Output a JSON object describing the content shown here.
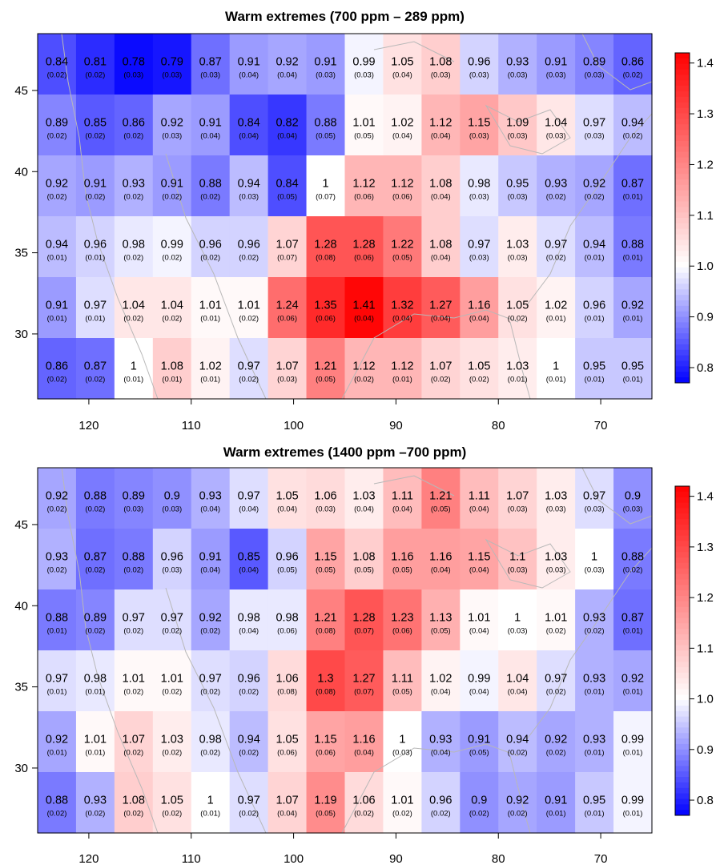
{
  "chart_data": [
    {
      "type": "heatmap",
      "title": "Warm extremes (700 ppm – 289 ppm)",
      "xlabel": "",
      "ylabel": "",
      "x_ticks": [
        120,
        110,
        100,
        90,
        80,
        70
      ],
      "y_ticks": [
        45,
        40,
        35,
        30
      ],
      "xlim": [
        125,
        65
      ],
      "ylim": [
        26,
        48.5
      ],
      "colorbar": {
        "min": 0.77,
        "max": 1.42,
        "ticks": [
          "1.4",
          "1.3",
          "1.2",
          "1.1",
          "1.0",
          "0.9",
          "0.8"
        ],
        "low_color": "#0000ff",
        "mid_color": "#ffffff",
        "high_color": "#ff0000"
      },
      "values": [
        [
          "0.84",
          "0.81",
          "0.78",
          "0.79",
          "0.87",
          "0.91",
          "0.92",
          "0.91",
          "0.99",
          "1.05",
          "1.08",
          "0.96",
          "0.93",
          "0.91",
          "0.89",
          "0.86"
        ],
        [
          "0.89",
          "0.85",
          "0.86",
          "0.92",
          "0.91",
          "0.84",
          "0.82",
          "0.88",
          "1.01",
          "1.02",
          "1.12",
          "1.15",
          "1.09",
          "1.04",
          "0.97",
          "0.94"
        ],
        [
          "0.92",
          "0.91",
          "0.93",
          "0.91",
          "0.88",
          "0.94",
          "0.84",
          "1",
          "1.12",
          "1.12",
          "1.08",
          "0.98",
          "0.95",
          "0.93",
          "0.92",
          "0.87"
        ],
        [
          "0.94",
          "0.96",
          "0.98",
          "0.99",
          "0.96",
          "0.96",
          "1.07",
          "1.28",
          "1.28",
          "1.22",
          "1.08",
          "0.97",
          "1.03",
          "0.97",
          "0.94",
          "0.88"
        ],
        [
          "0.91",
          "0.97",
          "1.04",
          "1.04",
          "1.01",
          "1.01",
          "1.24",
          "1.35",
          "1.41",
          "1.32",
          "1.27",
          "1.16",
          "1.05",
          "1.02",
          "0.96",
          "0.92"
        ],
        [
          "0.86",
          "0.87",
          "1",
          "1.08",
          "1.02",
          "0.97",
          "1.07",
          "1.21",
          "1.12",
          "1.12",
          "1.07",
          "1.05",
          "1.03",
          "1",
          "0.95",
          "0.95"
        ]
      ],
      "errors": [
        [
          "(0.02)",
          "(0.02)",
          "(0.03)",
          "(0.03)",
          "(0.03)",
          "(0.04)",
          "(0.04)",
          "(0.03)",
          "(0.03)",
          "(0.04)",
          "(0.03)",
          "(0.03)",
          "(0.03)",
          "(0.03)",
          "(0.03)",
          "(0.02)"
        ],
        [
          "(0.02)",
          "(0.02)",
          "(0.02)",
          "(0.03)",
          "(0.04)",
          "(0.04)",
          "(0.04)",
          "(0.05)",
          "(0.05)",
          "(0.04)",
          "(0.04)",
          "(0.03)",
          "(0.03)",
          "(0.03)",
          "(0.03)",
          "(0.02)"
        ],
        [
          "(0.02)",
          "(0.02)",
          "(0.02)",
          "(0.02)",
          "(0.02)",
          "(0.03)",
          "(0.05)",
          "(0.07)",
          "(0.06)",
          "(0.06)",
          "(0.04)",
          "(0.03)",
          "(0.03)",
          "(0.02)",
          "(0.02)",
          "(0.01)"
        ],
        [
          "(0.01)",
          "(0.01)",
          "(0.02)",
          "(0.02)",
          "(0.02)",
          "(0.02)",
          "(0.07)",
          "(0.08)",
          "(0.06)",
          "(0.05)",
          "(0.04)",
          "(0.03)",
          "(0.03)",
          "(0.02)",
          "(0.01)",
          "(0.01)"
        ],
        [
          "(0.01)",
          "(0.01)",
          "(0.02)",
          "(0.02)",
          "(0.01)",
          "(0.02)",
          "(0.06)",
          "(0.06)",
          "(0.04)",
          "(0.04)",
          "(0.04)",
          "(0.04)",
          "(0.02)",
          "(0.01)",
          "(0.01)",
          "(0.01)"
        ],
        [
          "(0.02)",
          "(0.02)",
          "(0.01)",
          "(0.01)",
          "(0.01)",
          "(0.02)",
          "(0.03)",
          "(0.05)",
          "(0.02)",
          "(0.01)",
          "(0.02)",
          "(0.02)",
          "(0.01)",
          "(0.01)",
          "(0.01)",
          "(0.01)"
        ]
      ]
    },
    {
      "type": "heatmap",
      "title": "Warm extremes (1400 ppm –700 ppm)",
      "xlabel": "",
      "ylabel": "",
      "x_ticks": [
        120,
        110,
        100,
        90,
        80,
        70
      ],
      "y_ticks": [
        45,
        40,
        35,
        30
      ],
      "xlim": [
        125,
        65
      ],
      "ylim": [
        26,
        48.5
      ],
      "colorbar": {
        "min": 0.77,
        "max": 1.42,
        "ticks": [
          "1.4",
          "1.3",
          "1.2",
          "1.1",
          "1.0",
          "0.9",
          "0.8"
        ],
        "low_color": "#0000ff",
        "mid_color": "#ffffff",
        "high_color": "#ff0000"
      },
      "values": [
        [
          "0.92",
          "0.88",
          "0.89",
          "0.9",
          "0.93",
          "0.97",
          "1.05",
          "1.06",
          "1.03",
          "1.11",
          "1.21",
          "1.11",
          "1.07",
          "1.03",
          "0.97",
          "0.9"
        ],
        [
          "0.93",
          "0.87",
          "0.88",
          "0.96",
          "0.91",
          "0.85",
          "0.96",
          "1.15",
          "1.08",
          "1.16",
          "1.16",
          "1.15",
          "1.1",
          "1.03",
          "1",
          "0.88"
        ],
        [
          "0.88",
          "0.89",
          "0.97",
          "0.97",
          "0.92",
          "0.98",
          "0.98",
          "1.21",
          "1.28",
          "1.23",
          "1.13",
          "1.01",
          "1",
          "1.01",
          "0.93",
          "0.87"
        ],
        [
          "0.97",
          "0.98",
          "1.01",
          "1.01",
          "0.97",
          "0.96",
          "1.06",
          "1.3",
          "1.27",
          "1.11",
          "1.02",
          "0.99",
          "1.04",
          "0.97",
          "0.93",
          "0.92"
        ],
        [
          "0.92",
          "1.01",
          "1.07",
          "1.03",
          "0.98",
          "0.94",
          "1.05",
          "1.15",
          "1.16",
          "1",
          "0.93",
          "0.91",
          "0.94",
          "0.92",
          "0.93",
          "0.99"
        ],
        [
          "0.88",
          "0.93",
          "1.08",
          "1.05",
          "1",
          "0.97",
          "1.07",
          "1.19",
          "1.06",
          "1.01",
          "0.96",
          "0.9",
          "0.92",
          "0.91",
          "0.95",
          "0.99"
        ]
      ],
      "errors": [
        [
          "(0.02)",
          "(0.02)",
          "(0.03)",
          "(0.03)",
          "(0.04)",
          "(0.04)",
          "(0.04)",
          "(0.03)",
          "(0.04)",
          "(0.04)",
          "(0.05)",
          "(0.04)",
          "(0.03)",
          "(0.03)",
          "(0.03)",
          "(0.03)"
        ],
        [
          "(0.02)",
          "(0.02)",
          "(0.02)",
          "(0.03)",
          "(0.04)",
          "(0.04)",
          "(0.05)",
          "(0.05)",
          "(0.05)",
          "(0.05)",
          "(0.04)",
          "(0.04)",
          "(0.03)",
          "(0.03)",
          "(0.03)",
          "(0.02)"
        ],
        [
          "(0.01)",
          "(0.02)",
          "(0.02)",
          "(0.02)",
          "(0.02)",
          "(0.04)",
          "(0.06)",
          "(0.08)",
          "(0.07)",
          "(0.06)",
          "(0.05)",
          "(0.04)",
          "(0.03)",
          "(0.02)",
          "(0.02)",
          "(0.01)"
        ],
        [
          "(0.01)",
          "(0.01)",
          "(0.02)",
          "(0.02)",
          "(0.02)",
          "(0.02)",
          "(0.08)",
          "(0.08)",
          "(0.07)",
          "(0.05)",
          "(0.04)",
          "(0.04)",
          "(0.04)",
          "(0.02)",
          "(0.01)",
          "(0.01)"
        ],
        [
          "(0.01)",
          "(0.01)",
          "(0.02)",
          "(0.02)",
          "(0.02)",
          "(0.02)",
          "(0.06)",
          "(0.06)",
          "(0.04)",
          "(0.03)",
          "(0.04)",
          "(0.05)",
          "(0.02)",
          "(0.02)",
          "(0.01)",
          "(0.01)"
        ],
        [
          "(0.02)",
          "(0.02)",
          "(0.02)",
          "(0.02)",
          "(0.01)",
          "(0.02)",
          "(0.04)",
          "(0.05)",
          "(0.02)",
          "(0.02)",
          "(0.02)",
          "(0.02)",
          "(0.02)",
          "(0.01)",
          "(0.01)",
          "(0.01)"
        ]
      ]
    }
  ]
}
